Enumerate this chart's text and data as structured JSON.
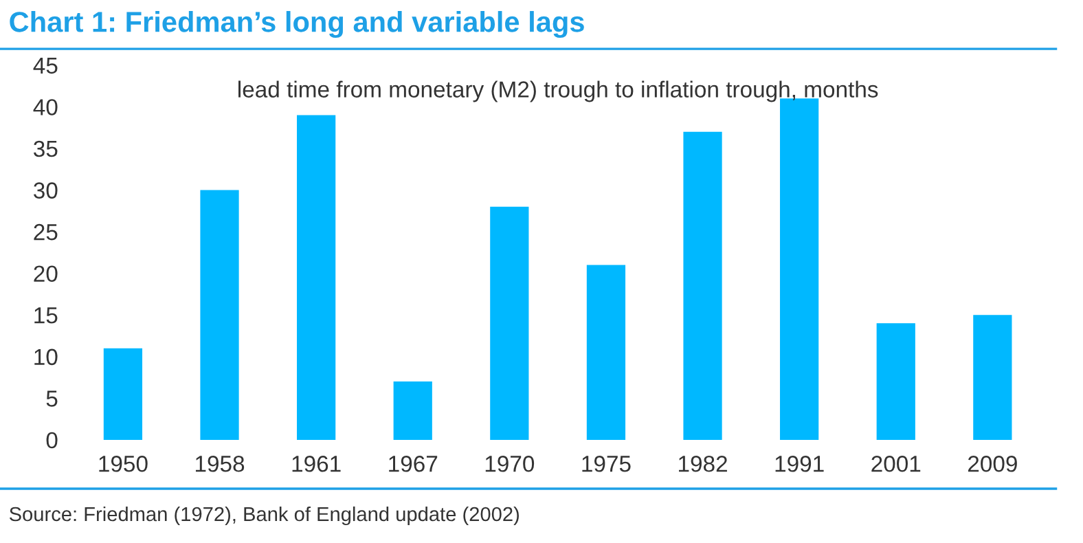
{
  "chart_data": {
    "type": "bar",
    "title": "Chart 1: Friedman’s long and variable lags",
    "subtitle": "lead time from monetary (M2) trough to inflation trough, months",
    "categories": [
      "1950",
      "1958",
      "1961",
      "1967",
      "1970",
      "1975",
      "1982",
      "1991",
      "2001",
      "2009"
    ],
    "values": [
      11,
      30,
      39,
      7,
      28,
      21,
      37,
      41,
      14,
      15
    ],
    "color": "#00b8ff",
    "ylim": [
      0,
      45
    ],
    "yticks": [
      0,
      5,
      10,
      15,
      20,
      25,
      30,
      35,
      40,
      45
    ],
    "grid": false,
    "annotations": [
      "Source: Friedman (1972), Bank of England update (2002)"
    ]
  }
}
